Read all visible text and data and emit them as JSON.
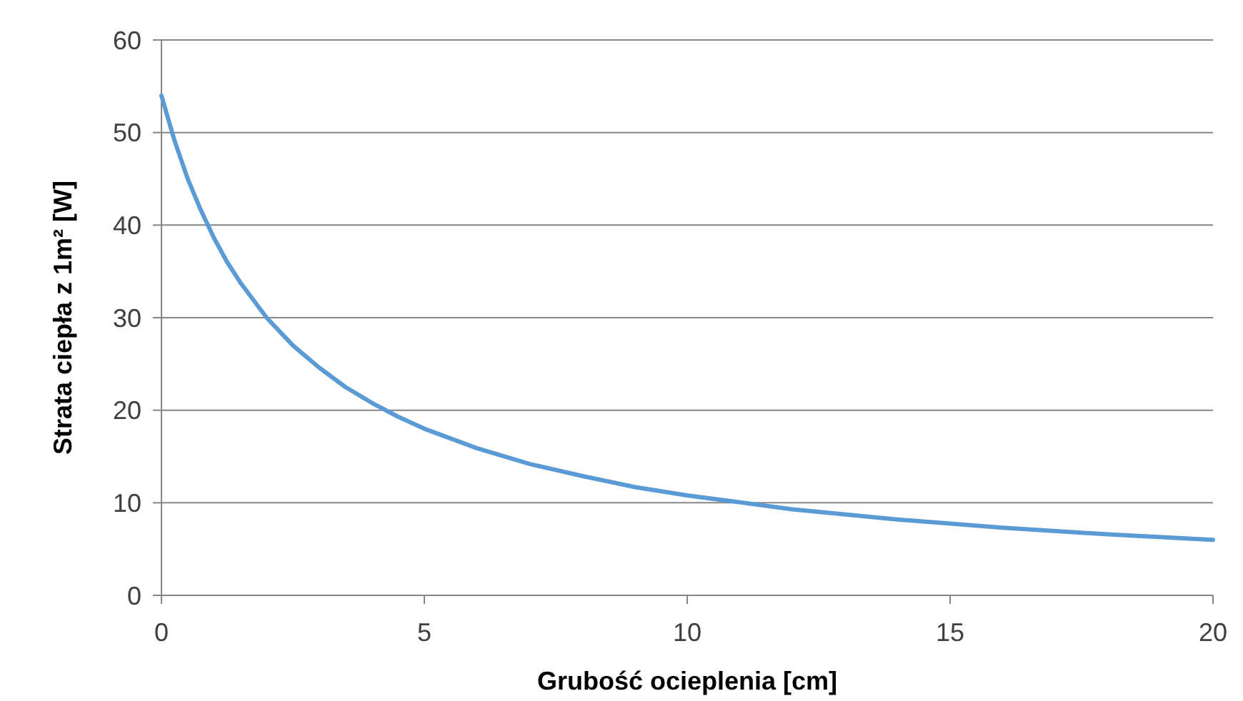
{
  "chart_data": {
    "type": "line",
    "xlabel": "Grubość ocieplenia [cm]",
    "ylabel": "Strata ciepła z 1m² [W]",
    "x": [
      0,
      0.25,
      0.5,
      0.75,
      1,
      1.25,
      1.5,
      2,
      2.5,
      3,
      3.5,
      4,
      4.5,
      5,
      6,
      7,
      8,
      9,
      10,
      12,
      14,
      16,
      18,
      20
    ],
    "series": [
      {
        "color": "#5b9bd5",
        "values": [
          54,
          49.1,
          45,
          41.6,
          38.6,
          36,
          33.8,
          30,
          27,
          24.6,
          22.5,
          20.8,
          19.3,
          18,
          15.9,
          14.2,
          12.9,
          11.7,
          10.8,
          9.3,
          8.2,
          7.3,
          6.6,
          6
        ]
      }
    ],
    "xlim": [
      0,
      20
    ],
    "xticks": [
      0,
      5,
      10,
      15,
      20
    ],
    "ylim": [
      0,
      60
    ],
    "yticks": [
      0,
      10,
      20,
      30,
      40,
      50,
      60
    ],
    "grid": "y",
    "marker": "none",
    "line_style": "solid"
  }
}
